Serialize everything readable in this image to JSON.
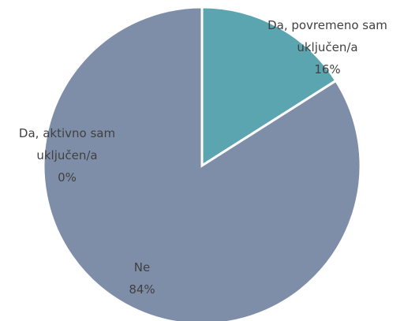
{
  "chart_data": {
    "type": "pie",
    "categories": [
      "Da, povremeno sam uključen/a",
      "Da, aktivno sam uključen/a",
      "Ne"
    ],
    "values": [
      16,
      0,
      84
    ],
    "value_labels": [
      "16%",
      "0%",
      "84%"
    ],
    "colors": [
      "#5ba5b0",
      "#8a96b0",
      "#7f8ea8"
    ]
  }
}
